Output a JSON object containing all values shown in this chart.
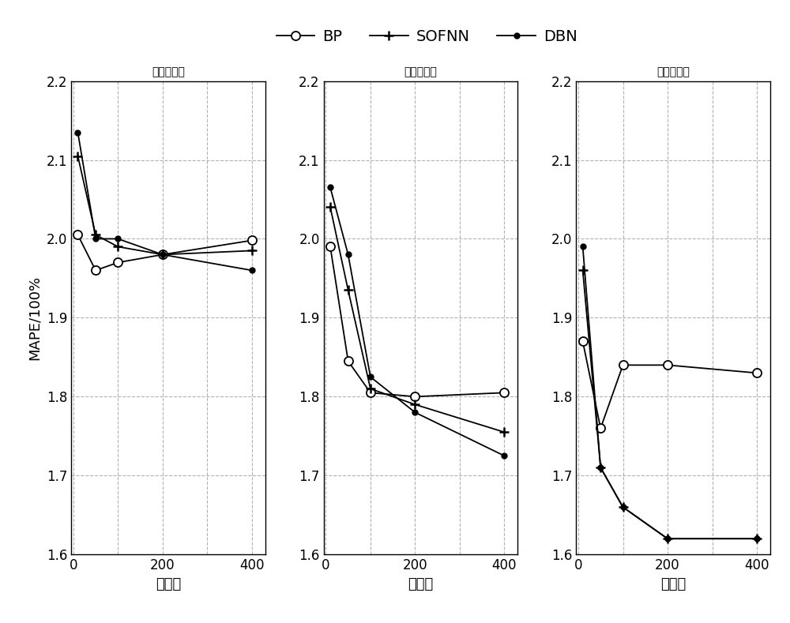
{
  "subplots": [
    {
      "title": "一层隐含层",
      "x": [
        10,
        50,
        100,
        200,
        400
      ],
      "BP": [
        2.005,
        1.96,
        1.97,
        1.98,
        1.998
      ],
      "SOFNN": [
        2.105,
        2.005,
        1.99,
        1.98,
        1.985
      ],
      "DBN": [
        2.135,
        2.0,
        2.0,
        1.98,
        1.96
      ]
    },
    {
      "title": "两层隐含层",
      "x": [
        10,
        50,
        100,
        200,
        400
      ],
      "BP": [
        1.99,
        1.845,
        1.805,
        1.8,
        1.805
      ],
      "SOFNN": [
        2.04,
        1.935,
        1.81,
        1.79,
        1.755
      ],
      "DBN": [
        2.065,
        1.98,
        1.825,
        1.78,
        1.725
      ]
    },
    {
      "title": "三层隐含层",
      "x": [
        10,
        50,
        100,
        200,
        400
      ],
      "BP": [
        1.87,
        1.76,
        1.84,
        1.84,
        1.83
      ],
      "SOFNN": [
        1.96,
        1.71,
        1.66,
        1.62,
        1.62
      ],
      "DBN": [
        1.99,
        1.71,
        1.66,
        1.62,
        1.62
      ]
    }
  ],
  "xlabel": "节点数",
  "ylabel": "MAPE/100%",
  "ylim": [
    1.6,
    2.2
  ],
  "yticks": [
    1.6,
    1.7,
    1.8,
    1.9,
    2.0,
    2.1,
    2.2
  ],
  "xticks": [
    0,
    200,
    400
  ],
  "xlim": [
    -5,
    430
  ],
  "legend_labels": [
    "BP",
    "SOFNN",
    "DBN"
  ],
  "background_color": "#ffffff",
  "grid_color": "#aaaaaa",
  "title_fontsize": 15,
  "label_fontsize": 13,
  "tick_fontsize": 12,
  "legend_fontsize": 14
}
